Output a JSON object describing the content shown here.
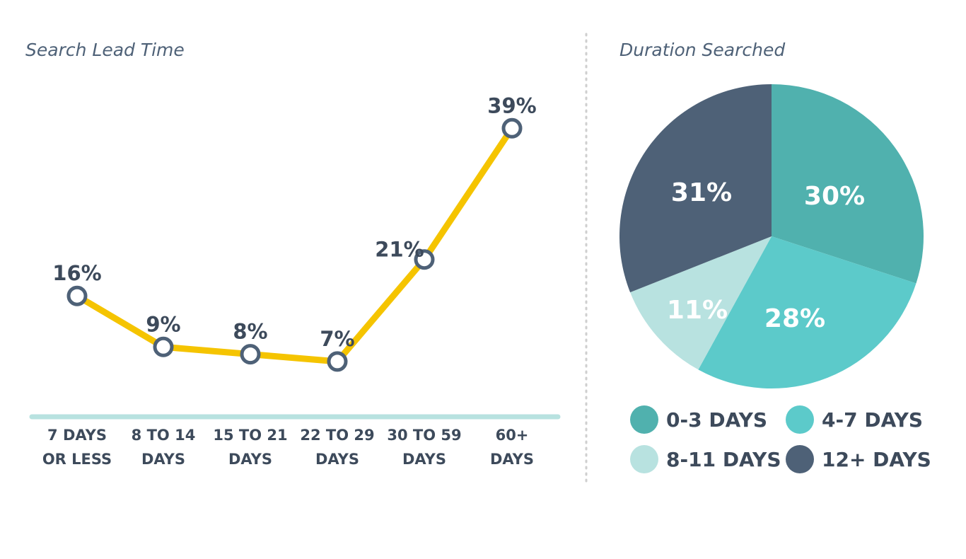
{
  "chart_data": [
    {
      "type": "line",
      "title": "Search Lead Time",
      "categories": [
        [
          "7 DAYS",
          "OR LESS"
        ],
        [
          "8 TO 14",
          "DAYS"
        ],
        [
          "15 TO 21",
          "DAYS"
        ],
        [
          "22 TO 29",
          "DAYS"
        ],
        [
          "30 TO 59",
          "DAYS"
        ],
        [
          "60+",
          "DAYS"
        ]
      ],
      "values": [
        16,
        9,
        8,
        7,
        21,
        39
      ],
      "labels": [
        "16%",
        "9%",
        "8%",
        "7%",
        "21%",
        "39%"
      ],
      "ylim": [
        0,
        40
      ],
      "line_color": "#f5c400",
      "marker_color": "#4e6177",
      "baseline_color": "#b8e2e0"
    },
    {
      "type": "pie",
      "title": "Duration Searched",
      "slices": [
        {
          "name": "0-3 DAYS",
          "value": 30,
          "label": "30%",
          "color": "#50b1ae"
        },
        {
          "name": "4-7 DAYS",
          "value": 28,
          "label": "28%",
          "color": "#5ccaca"
        },
        {
          "name": "8-11 DAYS",
          "value": 11,
          "label": "11%",
          "color": "#b8e2e0"
        },
        {
          "name": "12+ DAYS",
          "value": 31,
          "label": "31%",
          "color": "#4e6177"
        }
      ],
      "legend_placement": "bottom"
    }
  ],
  "divider_color": "#cfcfcf"
}
